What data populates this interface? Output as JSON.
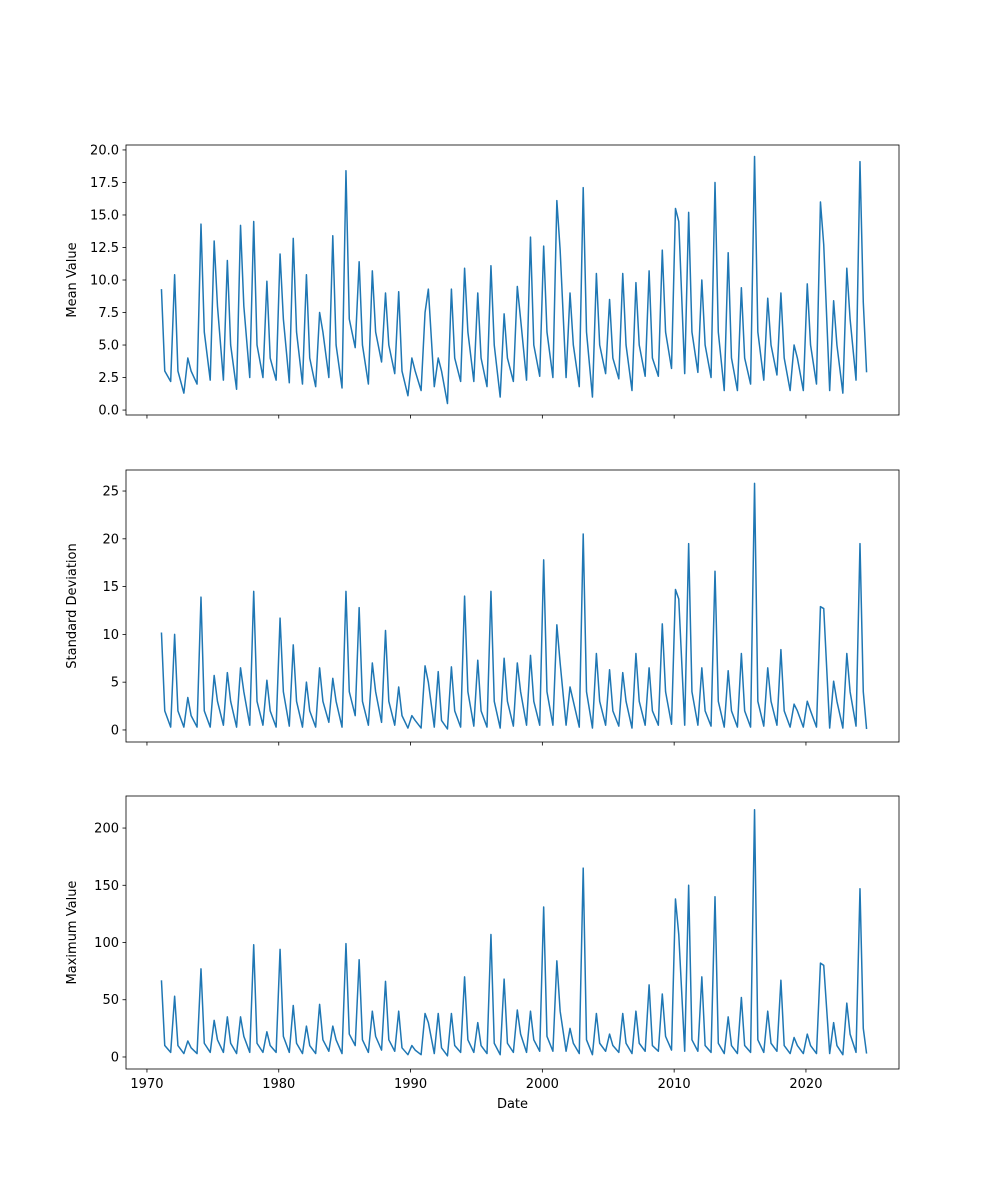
{
  "chart_data": [
    {
      "type": "line",
      "ylabel": "Mean Value",
      "color": "#1f77b4",
      "show_xtick_labels": false,
      "xlim": [
        1968.41,
        2027.06
      ],
      "xticks": [
        1970,
        1980,
        1990,
        2000,
        2010,
        2020
      ],
      "ylim": [
        -0.38,
        20.38
      ],
      "yticks": [
        {
          "value": 0,
          "label": "0.0"
        },
        2.5,
        {
          "value": 5,
          "label": "5.0"
        },
        7.5,
        {
          "value": 10,
          "label": "10.0"
        },
        12.5,
        {
          "value": 15,
          "label": "15.0"
        },
        17.5,
        {
          "value": 20,
          "label": "20.0"
        }
      ],
      "x": [
        1971.1,
        1971.35,
        1971.8,
        1972.1,
        1972.35,
        1972.8,
        1973.1,
        1973.35,
        1973.8,
        1974.1,
        1974.35,
        1974.8,
        1975.1,
        1975.35,
        1975.8,
        1976.1,
        1976.35,
        1976.8,
        1977.1,
        1977.35,
        1977.8,
        1978.1,
        1978.35,
        1978.8,
        1979.1,
        1979.35,
        1979.8,
        1980.1,
        1980.35,
        1980.8,
        1981.1,
        1981.35,
        1981.8,
        1982.1,
        1982.35,
        1982.8,
        1983.1,
        1983.35,
        1983.8,
        1984.1,
        1984.35,
        1984.8,
        1985.1,
        1985.35,
        1985.8,
        1986.1,
        1986.35,
        1986.8,
        1987.1,
        1987.35,
        1987.8,
        1988.1,
        1988.35,
        1988.8,
        1989.1,
        1989.35,
        1989.8,
        1990.1,
        1990.35,
        1990.8,
        1991.1,
        1991.35,
        1991.8,
        1992.1,
        1992.35,
        1992.8,
        1993.1,
        1993.35,
        1993.8,
        1994.1,
        1994.35,
        1994.8,
        1995.1,
        1995.35,
        1995.8,
        1996.1,
        1996.35,
        1996.8,
        1997.1,
        1997.35,
        1997.8,
        1998.1,
        1998.35,
        1998.8,
        1999.1,
        1999.35,
        1999.8,
        2000.1,
        2000.35,
        2000.8,
        2001.1,
        2001.35,
        2001.8,
        2002.1,
        2002.35,
        2002.8,
        2003.1,
        2003.35,
        2003.8,
        2004.1,
        2004.35,
        2004.8,
        2005.1,
        2005.35,
        2005.8,
        2006.1,
        2006.35,
        2006.8,
        2007.1,
        2007.35,
        2007.8,
        2008.1,
        2008.35,
        2008.8,
        2009.1,
        2009.35,
        2009.8,
        2010.1,
        2010.35,
        2010.8,
        2011.1,
        2011.35,
        2011.8,
        2012.1,
        2012.35,
        2012.8,
        2013.1,
        2013.35,
        2013.8,
        2014.1,
        2014.35,
        2014.8,
        2015.1,
        2015.35,
        2015.8,
        2016.1,
        2016.35,
        2016.8,
        2017.1,
        2017.35,
        2017.8,
        2018.1,
        2018.35,
        2018.8,
        2019.1,
        2019.35,
        2019.8,
        2020.1,
        2020.35,
        2020.8,
        2021.1,
        2021.35,
        2021.8,
        2022.1,
        2022.35,
        2022.8,
        2023.1,
        2023.35,
        2023.8,
        2024.1,
        2024.35,
        2024.6
      ],
      "values": [
        9.3,
        3,
        2.2,
        10.4,
        3,
        1.3,
        4,
        3,
        2,
        14.3,
        6,
        2.3,
        13,
        8,
        2.3,
        11.5,
        5,
        1.6,
        14.2,
        8,
        2.5,
        14.5,
        5,
        2.5,
        9.9,
        4,
        2.3,
        12,
        7,
        2.1,
        13.2,
        6,
        2,
        10.4,
        4,
        1.8,
        7.5,
        6,
        2.5,
        13.4,
        5,
        1.7,
        18.4,
        7,
        4.8,
        11.4,
        5,
        2,
        10.7,
        6,
        3.7,
        9,
        5,
        2.8,
        9.1,
        3,
        1.1,
        4,
        3,
        1.5,
        7.5,
        9.3,
        1.8,
        4,
        3,
        0.5,
        9.3,
        4,
        2.2,
        10.9,
        6,
        2.2,
        9,
        4,
        1.8,
        11.1,
        5,
        1,
        7.4,
        4,
        2.2,
        9.5,
        7,
        2.3,
        13.3,
        5,
        2.6,
        12.6,
        6,
        2.5,
        16.1,
        12.3,
        2.5,
        9,
        5,
        1.8,
        17.1,
        6,
        1,
        10.5,
        5,
        2.8,
        8.5,
        4,
        2.4,
        10.5,
        5,
        1.5,
        9.8,
        5,
        2.6,
        10.7,
        4,
        2.6,
        12.3,
        6,
        3.2,
        15.5,
        14.5,
        2.8,
        15.2,
        6,
        2.9,
        10,
        5,
        2.5,
        17.5,
        6,
        1.5,
        12.1,
        4,
        1.5,
        9.4,
        4,
        2,
        19.5,
        6,
        2.3,
        8.6,
        5,
        2.7,
        9,
        4,
        1.5,
        5,
        4,
        1.5,
        9.7,
        5,
        2,
        16,
        12.7,
        1.5,
        8.4,
        5,
        1.3,
        10.9,
        7,
        2.3,
        19.1,
        8.3,
        2.9
      ]
    },
    {
      "type": "line",
      "ylabel": "Standard Deviation",
      "color": "#1f77b4",
      "show_xtick_labels": false,
      "xlim": [
        1968.41,
        2027.06
      ],
      "xticks": [
        1970,
        1980,
        1990,
        2000,
        2010,
        2020
      ],
      "ylim": [
        -1.26,
        27.2
      ],
      "yticks": [
        0,
        5,
        10,
        15,
        20,
        25
      ],
      "x": [
        1971.1,
        1971.35,
        1971.8,
        1972.1,
        1972.35,
        1972.8,
        1973.1,
        1973.35,
        1973.8,
        1974.1,
        1974.35,
        1974.8,
        1975.1,
        1975.35,
        1975.8,
        1976.1,
        1976.35,
        1976.8,
        1977.1,
        1977.35,
        1977.8,
        1978.1,
        1978.35,
        1978.8,
        1979.1,
        1979.35,
        1979.8,
        1980.1,
        1980.35,
        1980.8,
        1981.1,
        1981.35,
        1981.8,
        1982.1,
        1982.35,
        1982.8,
        1983.1,
        1983.35,
        1983.8,
        1984.1,
        1984.35,
        1984.8,
        1985.1,
        1985.35,
        1985.8,
        1986.1,
        1986.35,
        1986.8,
        1987.1,
        1987.35,
        1987.8,
        1988.1,
        1988.35,
        1988.8,
        1989.1,
        1989.35,
        1989.8,
        1990.1,
        1990.35,
        1990.8,
        1991.1,
        1991.35,
        1991.8,
        1992.1,
        1992.35,
        1992.8,
        1993.1,
        1993.35,
        1993.8,
        1994.1,
        1994.35,
        1994.8,
        1995.1,
        1995.35,
        1995.8,
        1996.1,
        1996.35,
        1996.8,
        1997.1,
        1997.35,
        1997.8,
        1998.1,
        1998.35,
        1998.8,
        1999.1,
        1999.35,
        1999.8,
        2000.1,
        2000.35,
        2000.8,
        2001.1,
        2001.35,
        2001.8,
        2002.1,
        2002.35,
        2002.8,
        2003.1,
        2003.35,
        2003.8,
        2004.1,
        2004.35,
        2004.8,
        2005.1,
        2005.35,
        2005.8,
        2006.1,
        2006.35,
        2006.8,
        2007.1,
        2007.35,
        2007.8,
        2008.1,
        2008.35,
        2008.8,
        2009.1,
        2009.35,
        2009.8,
        2010.1,
        2010.35,
        2010.8,
        2011.1,
        2011.35,
        2011.8,
        2012.1,
        2012.35,
        2012.8,
        2013.1,
        2013.35,
        2013.8,
        2014.1,
        2014.35,
        2014.8,
        2015.1,
        2015.35,
        2015.8,
        2016.1,
        2016.35,
        2016.8,
        2017.1,
        2017.35,
        2017.8,
        2018.1,
        2018.35,
        2018.8,
        2019.1,
        2019.35,
        2019.8,
        2020.1,
        2020.35,
        2020.8,
        2021.1,
        2021.35,
        2021.8,
        2022.1,
        2022.35,
        2022.8,
        2023.1,
        2023.35,
        2023.8,
        2024.1,
        2024.35,
        2024.6
      ],
      "values": [
        10.2,
        2,
        0.3,
        10,
        2,
        0.3,
        3.4,
        1.5,
        0.3,
        13.9,
        2,
        0.3,
        5.7,
        3,
        0.5,
        6,
        3,
        0.3,
        6.5,
        4,
        0.5,
        14.5,
        3,
        0.5,
        5.2,
        2,
        0.3,
        11.7,
        4,
        0.4,
        8.9,
        3,
        0.3,
        5,
        2,
        0.3,
        6.5,
        3,
        0.8,
        5.4,
        3,
        0.3,
        14.5,
        4,
        1.5,
        12.8,
        3,
        0.5,
        7,
        4,
        0.8,
        10.4,
        3,
        0.5,
        4.5,
        1.5,
        0.2,
        1.5,
        1,
        0.2,
        6.7,
        5,
        0.3,
        6.1,
        1,
        0.1,
        6.6,
        2,
        0.3,
        14,
        4,
        0.4,
        7.3,
        2,
        0.3,
        14.5,
        3,
        0.2,
        7.5,
        3,
        0.4,
        7,
        4,
        0.5,
        7.8,
        3,
        0.5,
        17.8,
        4,
        0.5,
        11,
        7,
        0.5,
        4.5,
        3,
        0.3,
        20.5,
        4,
        0.2,
        8,
        3,
        0.5,
        6.3,
        2,
        0.4,
        6,
        3,
        0.2,
        8,
        3,
        0.5,
        6.5,
        2,
        0.5,
        11.1,
        4,
        0.6,
        14.7,
        13.7,
        0.5,
        19.5,
        4,
        0.5,
        6.5,
        2,
        0.4,
        16.6,
        3,
        0.3,
        6.2,
        2,
        0.3,
        8,
        2,
        0.3,
        25.8,
        3,
        0.4,
        6.5,
        3,
        0.5,
        8.4,
        2,
        0.3,
        2.7,
        2,
        0.3,
        3,
        2,
        0.3,
        12.9,
        12.7,
        0.2,
        5.1,
        3,
        0.2,
        8,
        4,
        0.4,
        19.5,
        4,
        0.1
      ]
    },
    {
      "type": "line",
      "ylabel": "Maximum Value",
      "xlabel": "Date",
      "color": "#1f77b4",
      "show_xtick_labels": true,
      "xlim": [
        1968.41,
        2027.06
      ],
      "xticks": [
        1970,
        1980,
        1990,
        2000,
        2010,
        2020
      ],
      "ylim": [
        -10.5,
        228
      ],
      "yticks": [
        0,
        50,
        100,
        150,
        200
      ],
      "x": [
        1971.1,
        1971.35,
        1971.8,
        1972.1,
        1972.35,
        1972.8,
        1973.1,
        1973.35,
        1973.8,
        1974.1,
        1974.35,
        1974.8,
        1975.1,
        1975.35,
        1975.8,
        1976.1,
        1976.35,
        1976.8,
        1977.1,
        1977.35,
        1977.8,
        1978.1,
        1978.35,
        1978.8,
        1979.1,
        1979.35,
        1979.8,
        1980.1,
        1980.35,
        1980.8,
        1981.1,
        1981.35,
        1981.8,
        1982.1,
        1982.35,
        1982.8,
        1983.1,
        1983.35,
        1983.8,
        1984.1,
        1984.35,
        1984.8,
        1985.1,
        1985.35,
        1985.8,
        1986.1,
        1986.35,
        1986.8,
        1987.1,
        1987.35,
        1987.8,
        1988.1,
        1988.35,
        1988.8,
        1989.1,
        1989.35,
        1989.8,
        1990.1,
        1990.35,
        1990.8,
        1991.1,
        1991.35,
        1991.8,
        1992.1,
        1992.35,
        1992.8,
        1993.1,
        1993.35,
        1993.8,
        1994.1,
        1994.35,
        1994.8,
        1995.1,
        1995.35,
        1995.8,
        1996.1,
        1996.35,
        1996.8,
        1997.1,
        1997.35,
        1997.8,
        1998.1,
        1998.35,
        1998.8,
        1999.1,
        1999.35,
        1999.8,
        2000.1,
        2000.35,
        2000.8,
        2001.1,
        2001.35,
        2001.8,
        2002.1,
        2002.35,
        2002.8,
        2003.1,
        2003.35,
        2003.8,
        2004.1,
        2004.35,
        2004.8,
        2005.1,
        2005.35,
        2005.8,
        2006.1,
        2006.35,
        2006.8,
        2007.1,
        2007.35,
        2007.8,
        2008.1,
        2008.35,
        2008.8,
        2009.1,
        2009.35,
        2009.8,
        2010.1,
        2010.35,
        2010.8,
        2011.1,
        2011.35,
        2011.8,
        2012.1,
        2012.35,
        2012.8,
        2013.1,
        2013.35,
        2013.8,
        2014.1,
        2014.35,
        2014.8,
        2015.1,
        2015.35,
        2015.8,
        2016.1,
        2016.35,
        2016.8,
        2017.1,
        2017.35,
        2017.8,
        2018.1,
        2018.35,
        2018.8,
        2019.1,
        2019.35,
        2019.8,
        2020.1,
        2020.35,
        2020.8,
        2021.1,
        2021.35,
        2021.8,
        2022.1,
        2022.35,
        2022.8,
        2023.1,
        2023.35,
        2023.8,
        2024.1,
        2024.35,
        2024.6
      ],
      "values": [
        67,
        10,
        4,
        53,
        10,
        3,
        14,
        8,
        3,
        77,
        12,
        4,
        32,
        15,
        4,
        35,
        12,
        3,
        35,
        18,
        4,
        98,
        12,
        4,
        22,
        10,
        4,
        94,
        18,
        4,
        45,
        12,
        3,
        27,
        10,
        3,
        46,
        15,
        5,
        27,
        15,
        3,
        99,
        20,
        10,
        85,
        15,
        4,
        40,
        18,
        6,
        66,
        15,
        5,
        40,
        8,
        2,
        10,
        6,
        2,
        38,
        30,
        3,
        38,
        8,
        1,
        38,
        10,
        4,
        70,
        15,
        4,
        30,
        10,
        3,
        107,
        12,
        2,
        68,
        12,
        4,
        41,
        20,
        4,
        40,
        15,
        5,
        131,
        18,
        5,
        84,
        40,
        5,
        25,
        12,
        3,
        165,
        15,
        2,
        38,
        12,
        5,
        20,
        10,
        4,
        38,
        12,
        3,
        40,
        12,
        5,
        63,
        10,
        5,
        55,
        18,
        6,
        138,
        107,
        5,
        150,
        15,
        5,
        70,
        10,
        4,
        140,
        12,
        3,
        35,
        10,
        3,
        52,
        10,
        4,
        216,
        15,
        4,
        40,
        12,
        5,
        67,
        10,
        3,
        17,
        10,
        3,
        20,
        10,
        3,
        82,
        80,
        3,
        30,
        10,
        2,
        47,
        20,
        4,
        147,
        25,
        3
      ]
    }
  ]
}
